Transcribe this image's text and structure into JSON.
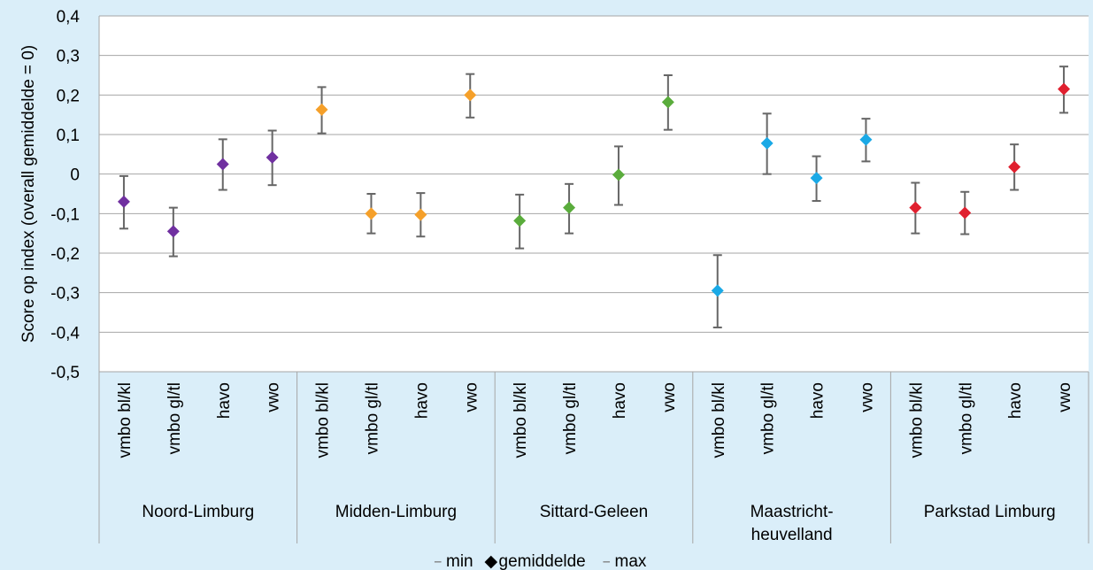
{
  "chart_data": {
    "type": "scatter",
    "ylabel": "Score op index (overall gemiddelde = 0)",
    "ylim": [
      -0.5,
      0.4
    ],
    "y_ticks": [
      "0,4",
      "0,3",
      "0,2",
      "0,1",
      "0",
      "-0,1",
      "-0,2",
      "-0,3",
      "-0,4",
      "-0,5"
    ],
    "y_tick_values": [
      0.4,
      0.3,
      0.2,
      0.1,
      0,
      -0.1,
      -0.2,
      -0.3,
      -0.4,
      -0.5
    ],
    "grid": true,
    "legend": {
      "position": "bottom",
      "items": [
        {
          "symbol": "–",
          "label": "min"
        },
        {
          "symbol": "◆",
          "label": "gemiddelde"
        },
        {
          "symbol": "–",
          "label": "max"
        }
      ]
    },
    "groups": [
      {
        "name": "Noord-Limburg",
        "name_lines": [
          "Noord-Limburg"
        ],
        "color": "#7030a0",
        "categories": [
          "vmbo bl/kl",
          "vmbo gl/tl",
          "havo",
          "vwo"
        ],
        "mean": [
          -0.07,
          -0.145,
          0.025,
          0.042
        ],
        "min": [
          -0.138,
          -0.208,
          -0.04,
          -0.028
        ],
        "max": [
          -0.005,
          -0.085,
          0.088,
          0.11
        ]
      },
      {
        "name": "Midden-Limburg",
        "name_lines": [
          "Midden-Limburg"
        ],
        "color": "#f5a02a",
        "categories": [
          "vmbo bl/kl",
          "vmbo gl/tl",
          "havo",
          "vwo"
        ],
        "mean": [
          0.163,
          -0.1,
          -0.103,
          0.2
        ],
        "min": [
          0.103,
          -0.15,
          -0.158,
          0.143
        ],
        "max": [
          0.22,
          -0.05,
          -0.048,
          0.253
        ]
      },
      {
        "name": "Sittard-Geleen",
        "name_lines": [
          "Sittard-Geleen"
        ],
        "color": "#5aac3c",
        "categories": [
          "vmbo bl/kl",
          "vmbo gl/tl",
          "havo",
          "vwo"
        ],
        "mean": [
          -0.118,
          -0.085,
          -0.002,
          0.182
        ],
        "min": [
          -0.188,
          -0.15,
          -0.078,
          0.112
        ],
        "max": [
          -0.052,
          -0.025,
          0.07,
          0.25
        ]
      },
      {
        "name": "Maastricht-heuvelland",
        "name_lines": [
          "Maastricht-",
          "heuvelland"
        ],
        "color": "#1aa9e6",
        "categories": [
          "vmbo bl/kl",
          "vmbo gl/tl",
          "havo",
          "vwo"
        ],
        "mean": [
          -0.295,
          0.078,
          -0.01,
          0.087
        ],
        "min": [
          -0.388,
          0.0,
          -0.068,
          0.032
        ],
        "max": [
          -0.205,
          0.153,
          0.045,
          0.14
        ]
      },
      {
        "name": "Parkstad Limburg",
        "name_lines": [
          "Parkstad Limburg"
        ],
        "color": "#e0202f",
        "categories": [
          "vmbo bl/kl",
          "vmbo gl/tl",
          "havo",
          "vwo"
        ],
        "mean": [
          -0.085,
          -0.098,
          0.018,
          0.215
        ],
        "min": [
          -0.15,
          -0.152,
          -0.04,
          0.155
        ],
        "max": [
          -0.022,
          -0.045,
          0.075,
          0.272
        ]
      }
    ]
  }
}
